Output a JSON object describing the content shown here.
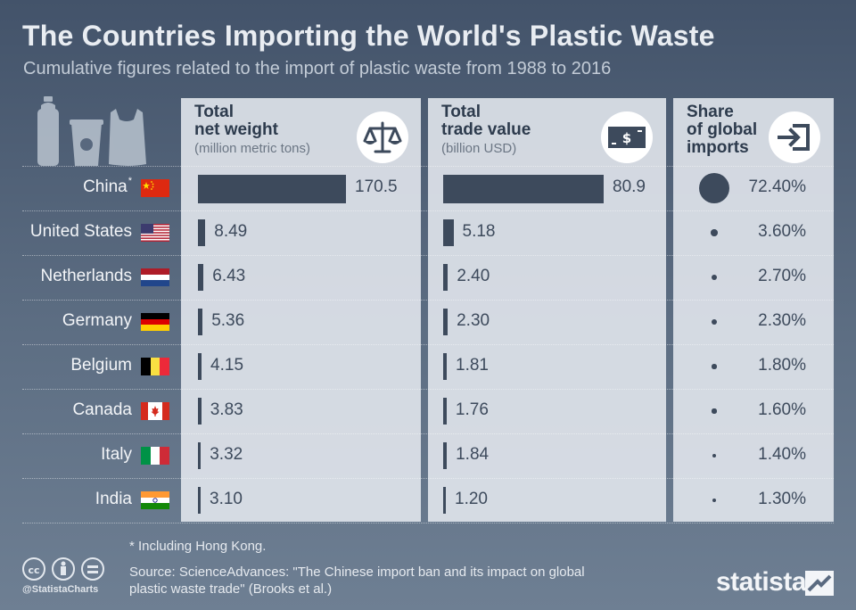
{
  "header": {
    "title": "The Countries Importing the World's Plastic Waste",
    "subtitle": "Cumulative figures related to the import of plastic waste from 1988 to 2016"
  },
  "panels": {
    "weight": {
      "title": "Total\nnet weight",
      "unit": "(million metric tons)",
      "icon": "scale-icon"
    },
    "value": {
      "title": "Total\ntrade value",
      "unit": "(billion USD)",
      "icon": "banknote-icon"
    },
    "share": {
      "title": "Share\nof global\nimports",
      "icon": "import-icon"
    }
  },
  "footer": {
    "footnote": "* Including Hong Kong.",
    "source": "Source: ScienceAdvances: \"The Chinese import ban and its impact on global plastic waste trade\" (Brooks et al.)",
    "handle": "@StatistaCharts",
    "brand": "statista"
  },
  "colors": {
    "background": "#4f5f75",
    "panel": "#e1e6ec",
    "bar": "#3d4a5c"
  },
  "chart_data": {
    "type": "table",
    "categories": [
      "China",
      "United States",
      "Netherlands",
      "Germany",
      "Belgium",
      "Canada",
      "Italy",
      "India"
    ],
    "category_marks": [
      "*",
      "",
      "",
      "",
      "",
      "",
      "",
      ""
    ],
    "series": [
      {
        "name": "Total net weight",
        "values": [
          170.5,
          8.49,
          6.43,
          5.36,
          4.15,
          3.83,
          3.32,
          3.1
        ],
        "labels": [
          "170.5",
          "8.49",
          "6.43",
          "5.36",
          "4.15",
          "3.83",
          "3.32",
          "3.10"
        ]
      },
      {
        "name": "Total trade value",
        "values": [
          80.9,
          5.18,
          2.4,
          2.3,
          1.81,
          1.76,
          1.84,
          1.2
        ],
        "labels": [
          "80.9",
          "5.18",
          "2.40",
          "2.30",
          "1.81",
          "1.76",
          "1.84",
          "1.20"
        ]
      },
      {
        "name": "Share of global imports",
        "values": [
          72.4,
          3.6,
          2.7,
          2.3,
          1.8,
          1.6,
          1.4,
          1.3
        ],
        "labels": [
          "72.40%",
          "3.60%",
          "2.70%",
          "2.30%",
          "1.80%",
          "1.60%",
          "1.40%",
          "1.30%"
        ]
      }
    ],
    "flags": [
      "china-flag-icon",
      "usa-flag-icon",
      "netherlands-flag-icon",
      "germany-flag-icon",
      "belgium-flag-icon",
      "canada-flag-icon",
      "italy-flag-icon",
      "india-flag-icon"
    ]
  }
}
